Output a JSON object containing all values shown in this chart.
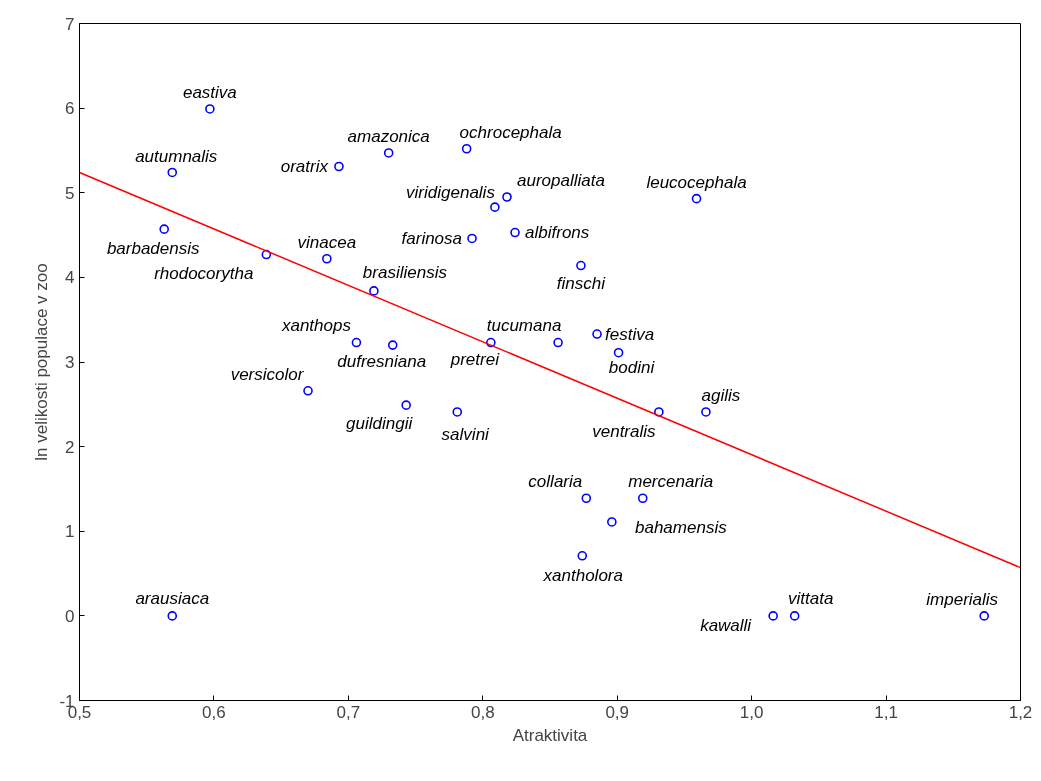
{
  "chart_data": {
    "type": "scatter",
    "xlabel": "Atraktivita",
    "ylabel": "ln velikosti populace v zoo",
    "xlim": [
      0.5,
      1.2
    ],
    "xticks": [
      {
        "value": 0.5,
        "label": "0,5"
      },
      {
        "value": 0.6,
        "label": "0,6"
      },
      {
        "value": 0.7,
        "label": "0,7"
      },
      {
        "value": 0.8,
        "label": "0,8"
      },
      {
        "value": 0.9,
        "label": "0,9"
      },
      {
        "value": 1.0,
        "label": "1,0"
      },
      {
        "value": 1.1,
        "label": "1,1"
      },
      {
        "value": 1.2,
        "label": "1,2"
      }
    ],
    "ylim": [
      -1,
      7
    ],
    "yticks": [
      -1,
      0,
      1,
      2,
      3,
      4,
      5,
      6,
      7
    ],
    "grid": false,
    "series": [
      {
        "color": "#0000ff",
        "marker": "circle",
        "x": [
          0.597,
          0.569,
          0.563,
          0.639,
          0.684,
          0.693,
          0.73,
          0.788,
          0.809,
          0.818,
          0.959,
          0.792,
          0.824,
          0.873,
          0.719,
          0.706,
          0.733,
          0.806,
          0.856,
          0.885,
          0.901,
          0.67,
          0.743,
          0.781,
          0.931,
          0.966,
          0.877,
          0.919,
          0.896,
          0.874,
          0.569,
          1.016,
          1.032,
          1.173
        ],
        "values": [
          5.99,
          5.24,
          4.57,
          4.27,
          4.22,
          5.31,
          5.47,
          5.52,
          4.83,
          4.95,
          4.93,
          4.46,
          4.53,
          4.14,
          3.84,
          3.23,
          3.2,
          3.23,
          3.23,
          3.33,
          3.11,
          2.66,
          2.49,
          2.41,
          2.41,
          2.41,
          1.39,
          1.39,
          1.11,
          0.71,
          0.0,
          0.0,
          0.0,
          0.0
        ],
        "value_labels": [
          "eastiva",
          "autumnalis",
          "barbadensis",
          "rhodocorytha",
          "vinacea",
          "oratrix",
          "amazonica",
          "ochrocephala",
          "viridigenalis",
          "auropalliata",
          "leucocephala",
          "farinosa",
          "albifrons",
          "finschi",
          "brasiliensis",
          "xanthops",
          "dufresniana",
          "pretrei",
          "tucumana",
          "festiva",
          "bodini",
          "versicolor",
          "guildingii",
          "salvini",
          "ventralis",
          "agilis",
          "collaria",
          "mercenaria",
          "bahamensis",
          "xantholora",
          "arausiaca",
          "kawalli",
          "vittata",
          "imperialis"
        ]
      },
      {
        "type": "line",
        "color": "#ff0000",
        "x": [
          0.5,
          1.2
        ],
        "values": [
          5.24,
          0.57
        ]
      }
    ]
  }
}
